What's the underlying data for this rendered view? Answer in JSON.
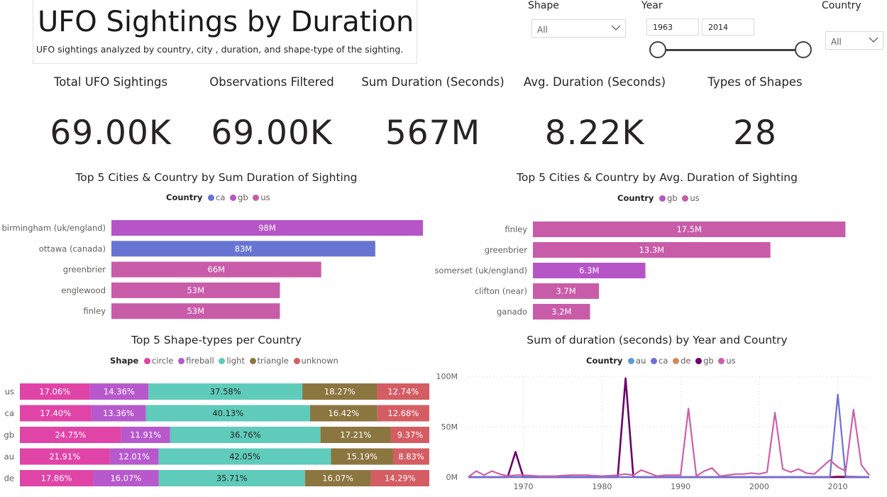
{
  "header": {
    "title": "UFO Sightings by Duration",
    "subtitle": "UFO sightings analyzed by country, city , duration, and shape-type of the sighting."
  },
  "slicers": {
    "shape_label": "Shape",
    "shape_value": "All",
    "year_label": "Year",
    "year_start": "1963",
    "year_end": "2014",
    "country_label": "Country",
    "country_value": "All"
  },
  "kpis": [
    {
      "label": "Total UFO Sightings",
      "value": "69.00K"
    },
    {
      "label": "Observations Filtered",
      "value": "69.00K"
    },
    {
      "label": "Sum Duration (Seconds)",
      "value": "567M"
    },
    {
      "label": "Avg. Duration (Seconds)",
      "value": "8.22K"
    },
    {
      "label": "Types of Shapes",
      "value": "28"
    }
  ],
  "colors": {
    "ca": "#6874d1",
    "gb": "#b655c8",
    "us": "#c95ca8",
    "au": "#5b9bd5",
    "de": "#d08a5e",
    "gb_line": "#6a006a",
    "us_line": "#cc5fa8",
    "ca_line": "#6b6fd8",
    "circle": "#e044a7",
    "fireball": "#b759cd",
    "light": "#5fcbba",
    "triangle": "#8b7640",
    "unknown": "#d45d63"
  },
  "chart_data": [
    {
      "type": "bar",
      "title": "Top 5 Cities & Country by Sum Duration of Sighting",
      "legend_title": "Country",
      "legend": [
        "ca",
        "gb",
        "us"
      ],
      "categories": [
        "birmingham (uk/england)",
        "ottawa (canada)",
        "greenbrier",
        "englewood",
        "finley"
      ],
      "country": [
        "gb",
        "ca",
        "us",
        "us",
        "us"
      ],
      "values": [
        98,
        83,
        66,
        53,
        53
      ],
      "value_labels": [
        "98M",
        "83M",
        "66M",
        "53M",
        "53M"
      ],
      "unit": "M",
      "xlim": [
        0,
        100
      ]
    },
    {
      "type": "bar",
      "title": "Top 5 Cities & Country by Avg. Duration of Sighting",
      "legend_title": "Country",
      "legend": [
        "gb",
        "us"
      ],
      "categories": [
        "finley",
        "greenbrier",
        "somerset (uk/england)",
        "clifton (near)",
        "ganado"
      ],
      "country": [
        "us",
        "us",
        "gb",
        "us",
        "us"
      ],
      "values": [
        17.5,
        13.3,
        6.3,
        3.7,
        3.2
      ],
      "value_labels": [
        "17.5M",
        "13.3M",
        "6.3M",
        "3.7M",
        "3.2M"
      ],
      "unit": "M",
      "xlim": [
        0,
        18
      ]
    },
    {
      "type": "bar",
      "stacked": "100%",
      "title": "Top 5 Shape-types per Country",
      "legend_title": "Shape",
      "categories": [
        "us",
        "ca",
        "gb",
        "au",
        "de"
      ],
      "series": [
        {
          "name": "circle",
          "values": [
            17.06,
            17.4,
            24.75,
            21.91,
            17.86
          ]
        },
        {
          "name": "fireball",
          "values": [
            14.36,
            13.36,
            11.91,
            12.01,
            16.07
          ]
        },
        {
          "name": "light",
          "values": [
            37.58,
            40.13,
            36.76,
            42.05,
            35.71
          ]
        },
        {
          "name": "triangle",
          "values": [
            18.27,
            16.42,
            17.21,
            15.19,
            16.07
          ]
        },
        {
          "name": "unknown",
          "values": [
            12.74,
            12.68,
            9.37,
            8.83,
            14.29
          ]
        }
      ]
    },
    {
      "type": "line",
      "title": "Sum of duration (seconds) by Year and Country",
      "legend_title": "Country",
      "legend": [
        "au",
        "ca",
        "de",
        "gb",
        "us"
      ],
      "ylim": [
        0,
        100
      ],
      "yticks": [
        "0M",
        "50M",
        "100M"
      ],
      "xlim": [
        1963,
        2014
      ],
      "xticks": [
        1970,
        1980,
        1990,
        2000,
        2010
      ],
      "series": [
        {
          "name": "gb",
          "x": [
            1963,
            1968,
            1969,
            1970,
            1982,
            1983,
            1984,
            1985,
            1990,
            2014
          ],
          "y": [
            0,
            0,
            25,
            0,
            0,
            98,
            0,
            0,
            0,
            0
          ]
        },
        {
          "name": "ca",
          "x": [
            1963,
            1999,
            2008,
            2009,
            2010,
            2011,
            2014
          ],
          "y": [
            0,
            0,
            0,
            0,
            82,
            0,
            0
          ]
        },
        {
          "name": "us",
          "x": [
            1963,
            1964,
            1965,
            1966,
            1967,
            1968,
            1969,
            1970,
            1972,
            1974,
            1976,
            1978,
            1980,
            1982,
            1983,
            1984,
            1985,
            1987,
            1988,
            1989,
            1990,
            1991,
            1992,
            1993,
            1994,
            1995,
            1996,
            1997,
            1998,
            1999,
            2000,
            2001,
            2002,
            2003,
            2004,
            2005,
            2006,
            2007,
            2008,
            2009,
            2010,
            2011,
            2012,
            2013,
            2014
          ],
          "y": [
            0,
            6,
            2,
            6,
            3,
            1,
            2,
            2,
            1,
            1,
            2,
            2,
            1,
            2,
            3,
            2,
            7,
            1,
            2,
            2,
            2,
            68,
            1,
            6,
            9,
            1,
            2,
            3,
            3,
            4,
            3,
            5,
            64,
            8,
            5,
            8,
            4,
            3,
            10,
            17,
            10,
            6,
            67,
            12,
            2
          ]
        },
        {
          "name": "au",
          "x": [
            1963,
            2014
          ],
          "y": [
            0,
            0
          ]
        },
        {
          "name": "de",
          "x": [
            1963,
            2009,
            2010,
            2014
          ],
          "y": [
            0,
            0,
            1,
            0
          ]
        }
      ]
    }
  ]
}
